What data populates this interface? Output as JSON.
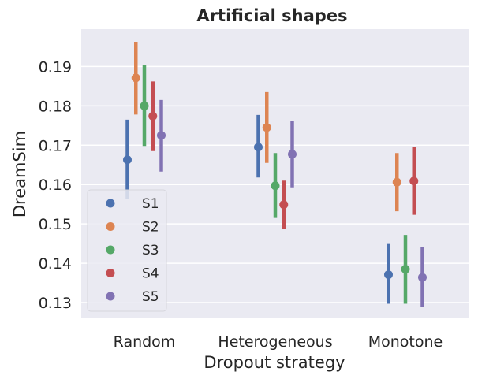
{
  "chart_data": {
    "type": "scatter",
    "title": "Artificial shapes",
    "xlabel": "Dropout strategy",
    "ylabel": "DreamSim",
    "categories": [
      "Random",
      "Heterogeneous",
      "Monotone"
    ],
    "ylim": [
      0.126,
      0.1995
    ],
    "yticks": [
      "0.13",
      "0.14",
      "0.15",
      "0.16",
      "0.17",
      "0.18",
      "0.19"
    ],
    "grid": true,
    "legend_position": "lower-left",
    "series": [
      {
        "name": "S1",
        "color": "#4c72b0",
        "values": [
          0.1663,
          0.1695,
          0.1371
        ],
        "ci_low": [
          0.1563,
          0.1618,
          0.1297
        ],
        "ci_high": [
          0.1765,
          0.1777,
          0.1449
        ]
      },
      {
        "name": "S2",
        "color": "#dd8452",
        "values": [
          0.1871,
          0.1745,
          0.1606
        ],
        "ci_low": [
          0.1778,
          0.1655,
          0.1532
        ],
        "ci_high": [
          0.1963,
          0.1835,
          0.168
        ]
      },
      {
        "name": "S3",
        "color": "#55a868",
        "values": [
          0.18,
          0.1597,
          0.1385
        ],
        "ci_low": [
          0.1698,
          0.1515,
          0.1297
        ],
        "ci_high": [
          0.1903,
          0.168,
          0.1472
        ]
      },
      {
        "name": "S4",
        "color": "#c44e52",
        "values": [
          0.1774,
          0.1549,
          0.1609
        ],
        "ci_low": [
          0.1685,
          0.1487,
          0.1523
        ],
        "ci_high": [
          0.1862,
          0.161,
          0.1695
        ]
      },
      {
        "name": "S5",
        "color": "#8172b3",
        "values": [
          0.1725,
          0.1677,
          0.1364
        ],
        "ci_low": [
          0.1633,
          0.1593,
          0.1288
        ],
        "ci_high": [
          0.1815,
          0.1762,
          0.1442
        ]
      }
    ]
  }
}
